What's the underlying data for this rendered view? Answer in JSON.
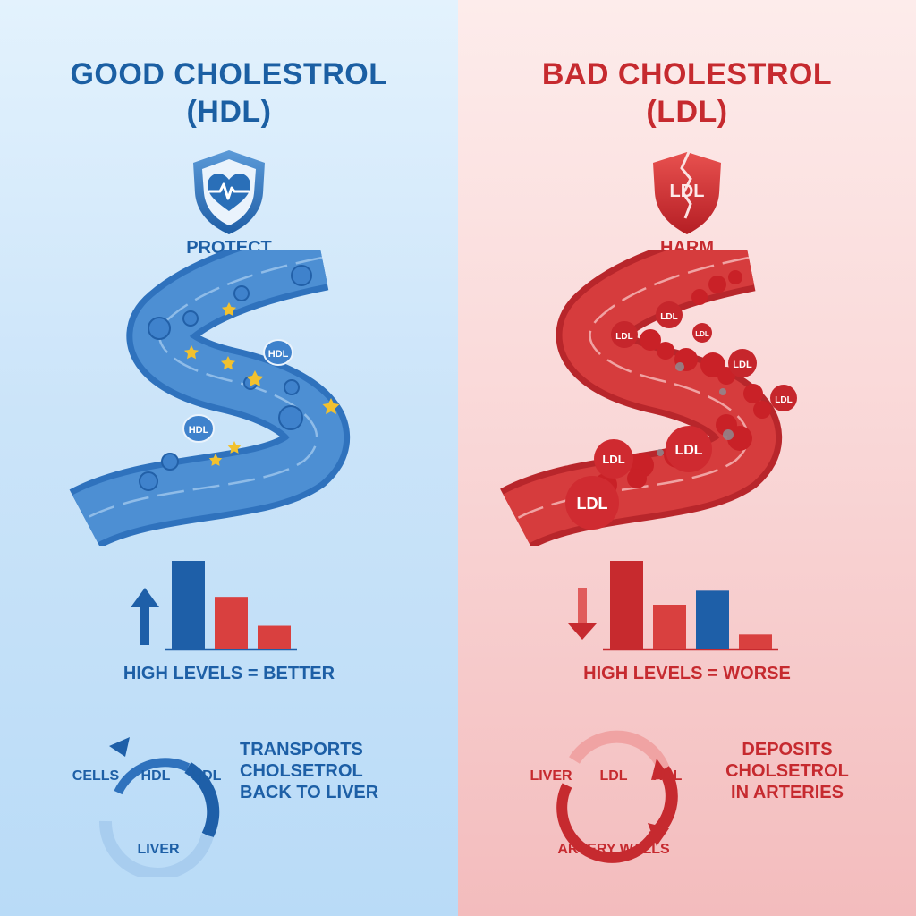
{
  "good": {
    "title_line1": "GOOD CHOLESTROL",
    "title_line2": "(HDL)",
    "shield_icon": "heart-pulse-shield-icon",
    "shield_label": "PROTECT",
    "particle_labels": [
      "HDL",
      "HDL"
    ],
    "bar_caption": "HIGH LEVELS = BETTER",
    "bar_levels": [
      1.0,
      0.59,
      0.26
    ],
    "bar_colors": [
      "#1e5fa8",
      "#d9403f",
      "#d9403f"
    ],
    "arrow": "up-arrow-icon",
    "cycle_labels": {
      "left": "CELLS",
      "center": "HDL",
      "right": "HDL",
      "bottom": "LIVER"
    },
    "note_lines": [
      "TRANSPORTS",
      "CHOLSETROL",
      "BACK TO LIVER"
    ],
    "colors": {
      "primary": "#1b5fa3",
      "background": "#cbe4f9",
      "star": "#f2c12e"
    }
  },
  "bad": {
    "title_line1": "BAD CHOLESTROL",
    "title_line2": "(LDL)",
    "shield_icon": "broken-shield-icon",
    "shield_text": "LDL",
    "shield_label": "HARM",
    "particle_labels": [
      "LDL",
      "LDL",
      "LDL",
      "LDL",
      "LDL",
      "LDL",
      "LDL",
      "LDL"
    ],
    "bar_caption": "HIGH LEVELS = WORSE",
    "bar_levels": [
      1.0,
      0.5,
      0.66,
      0.16
    ],
    "bar_colors": [
      "#c72a2e",
      "#d9403f",
      "#1e5fa8",
      "#d9403f"
    ],
    "arrow": "down-arrow-icon",
    "cycle_labels": {
      "left": "LIVER",
      "center": "LDL",
      "right": "HDL",
      "bottom": "ARTERY WALLS"
    },
    "note_lines": [
      "DEPOSITS",
      "CHOLSETROL",
      "IN ARTERIES"
    ],
    "colors": {
      "primary": "#c62a2f",
      "background": "#f9d6d6"
    }
  }
}
